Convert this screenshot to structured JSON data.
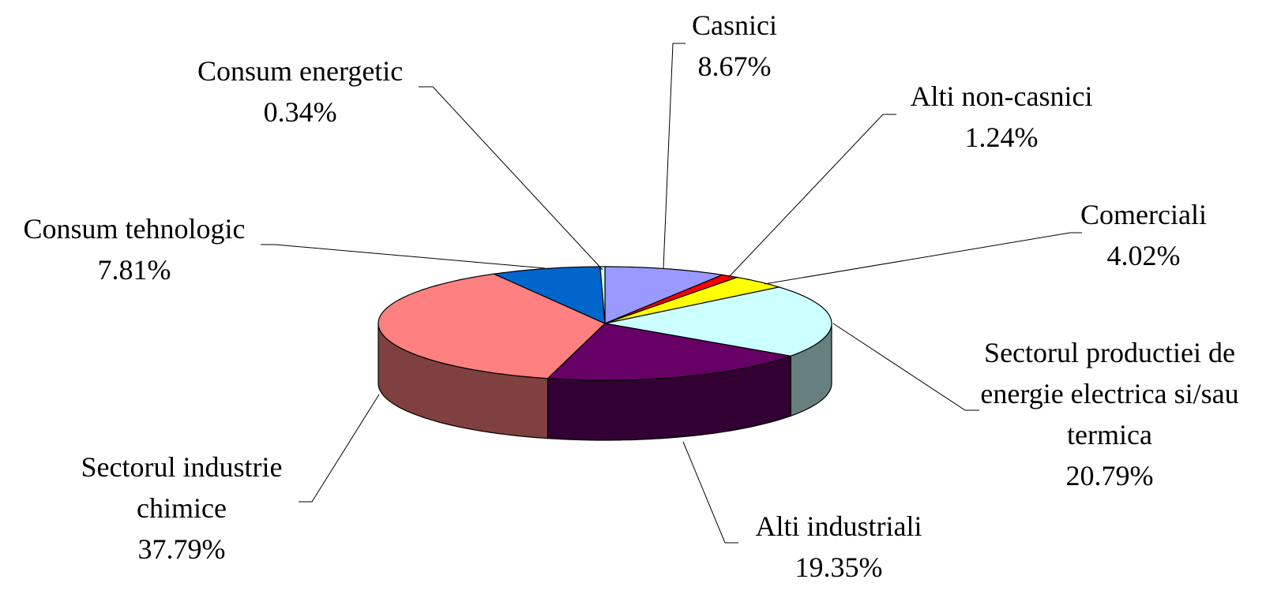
{
  "chart_data": {
    "type": "pie",
    "categories": [
      "Casnici",
      "Alti non-casnici",
      "Comerciali",
      "Sectorul productiei de energie electrica si/sau termica",
      "Alti industriali",
      "Sectorul industrie chimice",
      "Consum tehnologic",
      "Consum energetic"
    ],
    "values": [
      8.67,
      1.24,
      4.02,
      20.79,
      19.35,
      37.79,
      7.81,
      0.34
    ],
    "value_labels": [
      "8.67%",
      "1.24%",
      "4.02%",
      "20.79%",
      "19.35%",
      "37.79%",
      "7.81%",
      "0.34%"
    ],
    "colors": [
      "#9999ff",
      "#ff0000",
      "#ffff00",
      "#ccffff",
      "#660066",
      "#ff8080",
      "#0066cc",
      "#ccffff"
    ]
  }
}
